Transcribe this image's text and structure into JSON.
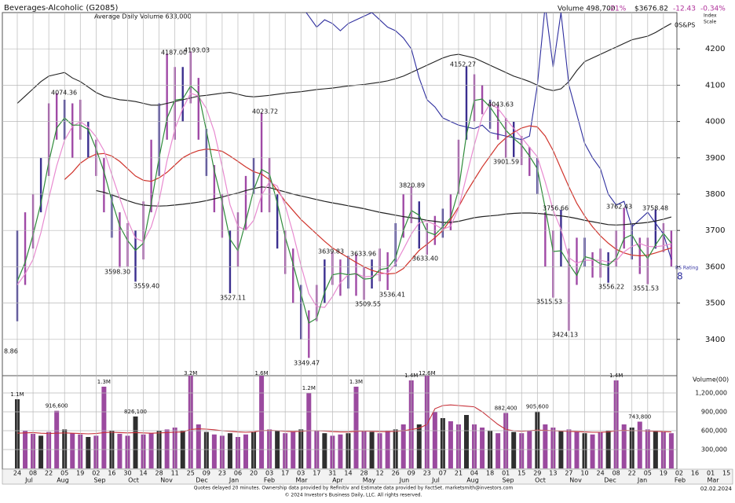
{
  "chart_data": {
    "type": "range",
    "title": "Beverages-Alcoholic   (G2085)",
    "subtitle": "Average Daily Volume 633,000",
    "header_stats": [
      "Volume 498,700",
      "-21%",
      "$3676.82",
      "-12.43",
      "-0.34%"
    ],
    "scale_note": [
      "Index",
      "Scale"
    ],
    "sp_label": "0S&PS",
    "rs_label": "RS Rating",
    "rs_rating": 8,
    "color": "#a04aa6",
    "grid": true,
    "categories": [
      "24",
      null,
      "08",
      null,
      "22",
      null,
      "05",
      null,
      "19",
      null,
      "02",
      null,
      "16",
      null,
      "30",
      null,
      "14",
      null,
      "28",
      null,
      "11",
      null,
      "25",
      null,
      "09",
      null,
      "23",
      null,
      "06",
      null,
      "20",
      null,
      "03",
      null,
      "17",
      null,
      "03",
      null,
      "17",
      null,
      "31",
      null,
      "14",
      null,
      "28",
      null,
      "12",
      null,
      "26",
      null,
      "09",
      null,
      "23",
      null,
      "07",
      null,
      "21",
      null,
      "04",
      null,
      "18",
      null,
      "01",
      null,
      "15",
      null,
      "29",
      null,
      "13",
      null,
      "27",
      null,
      "10",
      null,
      "24",
      null,
      "08",
      null,
      "22",
      null,
      "05",
      null,
      "19",
      null,
      "02",
      null,
      "16",
      null,
      "01",
      null,
      "15"
    ],
    "month_labels": [
      "Jul",
      "Aug",
      "Sep",
      "Oct",
      "Nov",
      "Dec",
      "Jan",
      "Feb",
      "Mar",
      "Apr",
      "May",
      "Jun",
      "Jul",
      "Aug",
      "Sep",
      "Oct",
      "Nov",
      "Dec",
      "Jan",
      "Feb",
      "Mar"
    ],
    "high": [
      3700,
      3750,
      3800,
      3900,
      4050,
      4078,
      4060,
      4050,
      4060,
      4000,
      3950,
      3900,
      3800,
      3750,
      3720,
      3700,
      3780,
      3950,
      4050,
      4187,
      4150,
      4150,
      4193,
      4120,
      3980,
      3880,
      3800,
      3700,
      3750,
      3850,
      3900,
      4024,
      3900,
      3800,
      3700,
      3650,
      3550,
      3480,
      3550,
      3620,
      3640,
      3620,
      3630,
      3634,
      3600,
      3620,
      3650,
      3640,
      3720,
      3800,
      3821,
      3780,
      3720,
      3740,
      3760,
      3800,
      3950,
      4152,
      4130,
      4100,
      4060,
      4044,
      4010,
      4000,
      3960,
      3930,
      3900,
      3750,
      3700,
      3757,
      3650,
      3680,
      3680,
      3640,
      3650,
      3640,
      3700,
      3762,
      3720,
      3680,
      3680,
      3758,
      3720,
      3700,
      null,
      null,
      null,
      null,
      null,
      null,
      null
    ],
    "low": [
      3450,
      3550,
      3650,
      3750,
      3850,
      3950,
      3950,
      3900,
      3950,
      3900,
      3850,
      3750,
      3680,
      3598,
      3600,
      3559,
      3620,
      3750,
      3850,
      3950,
      3950,
      4000,
      4050,
      3950,
      3850,
      3750,
      3680,
      3527,
      3600,
      3700,
      3800,
      3750,
      3750,
      3650,
      3580,
      3500,
      3400,
      3349,
      3450,
      3500,
      3550,
      3520,
      3540,
      3520,
      3509,
      3540,
      3560,
      3536,
      3600,
      3680,
      3720,
      3650,
      3633,
      3660,
      3680,
      3700,
      3800,
      3950,
      4000,
      4020,
      3980,
      3950,
      3900,
      3902,
      3880,
      3850,
      3800,
      3600,
      3515,
      3600,
      3424,
      3550,
      3600,
      3570,
      3570,
      3556,
      3600,
      3650,
      3620,
      3580,
      3552,
      3650,
      3640,
      3600,
      null,
      null,
      null,
      null,
      null,
      null,
      null
    ],
    "lines": [
      {
        "color": "#1f1f1f",
        "values": [
          4050,
          4070,
          4090,
          4110,
          4125,
          4130,
          4135,
          4120,
          4110,
          4095,
          4080,
          4070,
          4065,
          4060,
          4058,
          4055,
          4050,
          4045,
          4045,
          4050,
          4055,
          4060,
          4065,
          4070,
          4072,
          4075,
          4078,
          4080,
          4075,
          4070,
          4068,
          4070,
          4072,
          4075,
          4078,
          4080,
          4082,
          4085,
          4088,
          4090,
          4092,
          4095,
          4098,
          4100,
          4102,
          4105,
          4108,
          4112,
          4118,
          4125,
          4135,
          4145,
          4155,
          4165,
          4175,
          4182,
          4185,
          4180,
          4175,
          4165,
          4155,
          4145,
          4135,
          4125,
          4118,
          4110,
          4100,
          4090,
          4085,
          4090,
          4110,
          4140,
          4165,
          4175,
          4185,
          4195,
          4205,
          4215,
          4225,
          4230,
          4235,
          4245,
          4258,
          4270,
          null,
          null,
          null,
          null,
          null,
          null,
          null
        ]
      },
      {
        "color": "#2e2e9e",
        "values": [
          null,
          null,
          null,
          null,
          null,
          null,
          null,
          null,
          null,
          null,
          null,
          null,
          null,
          null,
          null,
          null,
          null,
          null,
          null,
          null,
          null,
          null,
          null,
          null,
          null,
          null,
          null,
          null,
          null,
          null,
          null,
          null,
          null,
          null,
          null,
          null,
          4320,
          4290,
          4260,
          4280,
          4270,
          4250,
          4270,
          4280,
          4290,
          4300,
          4280,
          4260,
          4250,
          4230,
          4200,
          4120,
          4060,
          4040,
          4010,
          4000,
          3990,
          3985,
          3980,
          3990,
          3970,
          3965,
          3960,
          3955,
          3950,
          3960,
          4100,
          4320,
          4150,
          4300,
          4100,
          4020,
          3940,
          3900,
          3870,
          3800,
          3770,
          3780,
          3710,
          3730,
          3750,
          3720,
          3690,
          3620,
          null,
          null,
          null,
          null,
          null,
          null,
          null
        ]
      },
      {
        "color": "#222222",
        "values": [
          null,
          null,
          null,
          null,
          null,
          null,
          null,
          null,
          null,
          null,
          3810,
          3805,
          3798,
          3790,
          3782,
          3775,
          3770,
          3768,
          3767,
          3768,
          3770,
          3772,
          3775,
          3778,
          3782,
          3787,
          3792,
          3798,
          3803,
          3810,
          3815,
          3820,
          3818,
          3812,
          3806,
          3800,
          3795,
          3790,
          3785,
          3780,
          3776,
          3772,
          3768,
          3764,
          3760,
          3755,
          3750,
          3746,
          3742,
          3738,
          3735,
          3732,
          3728,
          3725,
          3722,
          3722,
          3725,
          3730,
          3735,
          3738,
          3740,
          3742,
          3745,
          3747,
          3748,
          3748,
          3747,
          3745,
          3742,
          3740,
          3737,
          3733,
          3728,
          3724,
          3720,
          3716,
          3715,
          3716,
          3718,
          3720,
          3722,
          3726,
          3731,
          3737,
          null,
          null,
          null,
          null,
          null,
          null,
          null
        ]
      },
      {
        "color": "#d0342c",
        "values": [
          null,
          null,
          null,
          null,
          null,
          null,
          3840,
          3860,
          3885,
          3900,
          3910,
          3912,
          3905,
          3890,
          3870,
          3850,
          3838,
          3835,
          3845,
          3860,
          3880,
          3900,
          3912,
          3920,
          3924,
          3922,
          3918,
          3905,
          3890,
          3875,
          3862,
          3855,
          3840,
          3810,
          3780,
          3755,
          3730,
          3710,
          3690,
          3670,
          3652,
          3638,
          3625,
          3612,
          3600,
          3590,
          3584,
          3580,
          3582,
          3595,
          3620,
          3645,
          3662,
          3680,
          3700,
          3730,
          3765,
          3805,
          3840,
          3875,
          3905,
          3935,
          3955,
          3970,
          3982,
          3988,
          3985,
          3960,
          3920,
          3870,
          3820,
          3775,
          3740,
          3710,
          3685,
          3665,
          3648,
          3638,
          3632,
          3630,
          3632,
          3638,
          3645,
          3652,
          null,
          null,
          null,
          null,
          null,
          null,
          null
        ]
      },
      {
        "color": "#e88ad0",
        "values": [
          3550,
          3580,
          3620,
          3694,
          3788,
          3878,
          3948,
          3986,
          4000,
          3984,
          3958,
          3920,
          3854,
          3788,
          3728,
          3679,
          3669,
          3710,
          3782,
          3892,
          3979,
          4036,
          4078,
          4070,
          4036,
          3972,
          3876,
          3771,
          3711,
          3701,
          3728,
          3797,
          3834,
          3822,
          3769,
          3692,
          3604,
          3526,
          3490,
          3488,
          3518,
          3556,
          3578,
          3582,
          3572,
          3574,
          3580,
          3582,
          3608,
          3648,
          3690,
          3721,
          3726,
          3716,
          3703,
          3712,
          3761,
          3849,
          3935,
          4013,
          4049,
          4036,
          4008,
          3981,
          3956,
          3929,
          3903,
          3834,
          3756,
          3703,
          3625,
          3610,
          3618,
          3618,
          3618,
          3613,
          3616,
          3641,
          3656,
          3664,
          3656,
          3655,
          3658,
          3663,
          null,
          null,
          null,
          null,
          null,
          null,
          null
        ]
      },
      {
        "color": "#2e8b3a",
        "values": [
          3560,
          3612,
          3688,
          3775,
          3888,
          3982,
          4010,
          3990,
          3990,
          3978,
          3925,
          3862,
          3782,
          3712,
          3672,
          3645,
          3665,
          3775,
          3900,
          4009,
          4059,
          4062,
          4098,
          4078,
          3975,
          3865,
          3778,
          3676,
          3644,
          3725,
          3812,
          3868,
          3856,
          3775,
          3682,
          3608,
          3525,
          3445,
          3458,
          3530,
          3578,
          3582,
          3578,
          3581,
          3566,
          3568,
          3592,
          3596,
          3624,
          3700,
          3755,
          3742,
          3696,
          3688,
          3710,
          3735,
          3812,
          3963,
          4058,
          4062,
          4040,
          4008,
          3976,
          3953,
          3935,
          3905,
          3870,
          3762,
          3642,
          3644,
          3608,
          3576,
          3628,
          3622,
          3608,
          3604,
          3624,
          3678,
          3688,
          3650,
          3623,
          3660,
          3692,
          3665,
          null,
          null,
          null,
          null,
          null,
          null,
          null
        ]
      }
    ],
    "annotations": [
      "8.86",
      "4074.36",
      "3598.30",
      "3559.40",
      "4187.00",
      "4193.03",
      "3527.11",
      "4023.72",
      "3349.47",
      "3639.83",
      "3633.96",
      "3509.55",
      "3536.41",
      "3820.89",
      "3633.40",
      "4152.27",
      "4043.63",
      "3901.59",
      "3756.66",
      "3515.53",
      "3424.13",
      "3762.43",
      "3556.22",
      "3758.48",
      "3551.53"
    ],
    "ylim": [
      3300,
      4300
    ],
    "yticks": [
      3400,
      3500,
      3600,
      3700,
      3800,
      3900,
      4000,
      4100,
      4200
    ],
    "volume": {
      "label": "Volume(00)",
      "color": "#9b4a9f",
      "values": [
        1100000,
        600000,
        550000,
        520000,
        580000,
        916600,
        620000,
        560000,
        540000,
        500000,
        520000,
        1300000,
        600000,
        550000,
        520000,
        826100,
        540000,
        560000,
        600000,
        620000,
        650000,
        600000,
        3200000,
        700000,
        580000,
        540000,
        520000,
        560000,
        500000,
        540000,
        580000,
        1600000,
        620000,
        600000,
        560000,
        580000,
        620000,
        1200000,
        600000,
        560000,
        520000,
        540000,
        560000,
        1300000,
        600000,
        580000,
        560000,
        600000,
        620000,
        700000,
        1400000,
        700000,
        12600000,
        900000,
        800000,
        750000,
        700000,
        850000,
        700000,
        650000,
        600000,
        560000,
        882400,
        580000,
        560000,
        600000,
        905600,
        700000,
        650000,
        600000,
        620000,
        580000,
        560000,
        540000,
        580000,
        600000,
        1400000,
        700000,
        650000,
        743800,
        620000,
        600000,
        580000,
        560000,
        null,
        null,
        null,
        null,
        null,
        null,
        null
      ],
      "value_labels": [
        "1.1M",
        null,
        null,
        null,
        null,
        "916,600",
        null,
        null,
        null,
        null,
        null,
        "1.3M",
        null,
        null,
        null,
        "826,100",
        null,
        null,
        null,
        null,
        null,
        null,
        "3.2M",
        null,
        null,
        null,
        null,
        null,
        null,
        null,
        null,
        "1.6M",
        null,
        null,
        null,
        null,
        null,
        "1.2M",
        null,
        null,
        null,
        null,
        null,
        "1.3M",
        null,
        null,
        null,
        null,
        null,
        null,
        "1.4M",
        null,
        "12.6M",
        null,
        null,
        null,
        null,
        null,
        null,
        null,
        null,
        null,
        "882,400",
        null,
        null,
        null,
        "905,600",
        null,
        null,
        null,
        null,
        null,
        null,
        null,
        null,
        null,
        "1.4M",
        null,
        null,
        "743,800",
        null,
        null,
        null,
        null,
        null,
        null,
        null,
        null,
        null,
        null,
        null
      ],
      "average": [
        560000,
        565000,
        570000,
        560000,
        555000,
        560000,
        565000,
        560000,
        555000,
        550000,
        555000,
        570000,
        575000,
        570000,
        565000,
        570000,
        565000,
        560000,
        565000,
        570000,
        575000,
        580000,
        620000,
        630000,
        625000,
        615000,
        600000,
        590000,
        580000,
        575000,
        580000,
        600000,
        605000,
        600000,
        590000,
        585000,
        590000,
        600000,
        600000,
        595000,
        585000,
        580000,
        580000,
        590000,
        595000,
        590000,
        585000,
        585000,
        590000,
        600000,
        620000,
        640000,
        700000,
        950000,
        1000000,
        1010000,
        1000000,
        990000,
        980000,
        900000,
        800000,
        700000,
        620000,
        600000,
        590000,
        600000,
        610000,
        605000,
        600000,
        595000,
        590000,
        585000,
        580000,
        575000,
        575000,
        580000,
        600000,
        605000,
        600000,
        600000,
        595000,
        590000,
        585000,
        580000,
        null,
        null,
        null,
        null,
        null,
        null,
        null
      ],
      "ylim": [
        0,
        1500000
      ],
      "yticks": [
        {
          "value": 300000,
          "label": "300,000"
        },
        {
          "value": 600000,
          "label": "600,000"
        },
        {
          "value": 900000,
          "label": "900,000"
        },
        {
          "value": 1200000,
          "label": "1,200,000"
        }
      ]
    },
    "footer": [
      "Quotes delayed 20 minutes. Ownership data provided by Refinitiv and Estimate data provided by FactSet. marketsmith@investors.com",
      "© 2024 Investor's Business Daily, LLC. All rights reserved."
    ],
    "date": "02.02.2024"
  }
}
